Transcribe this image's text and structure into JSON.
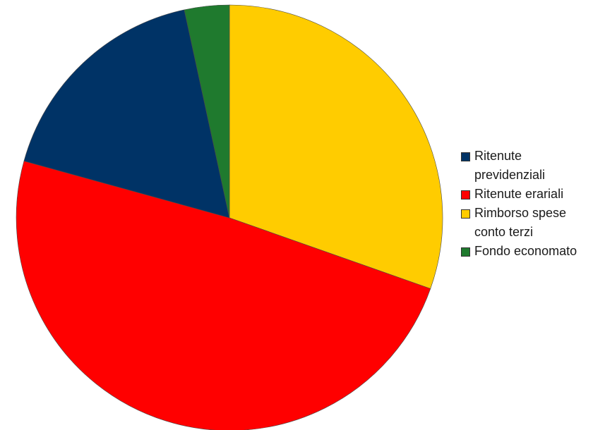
{
  "chart_data": {
    "type": "pie",
    "title": "",
    "start_angle_deg": 0,
    "direction": "clockwise",
    "slices": [
      {
        "label": "Rimborso spese conto terzi",
        "value": 30.4,
        "color": "#FFCC00"
      },
      {
        "label": "Ritenute erariali",
        "value": 48.9,
        "color": "#FF0000"
      },
      {
        "label": "Ritenute previdenziali",
        "value": 17.3,
        "color": "#003366"
      },
      {
        "label": "Fondo economato",
        "value": 3.4,
        "color": "#1F7A2E"
      }
    ],
    "legend": {
      "placement": "right",
      "entries": [
        {
          "label": "Ritenute previdenziali",
          "color": "#003366"
        },
        {
          "label": "Ritenute erariali",
          "color": "#FF0000"
        },
        {
          "label": "Rimborso spese conto terzi",
          "color": "#FFCC00"
        },
        {
          "label": "Fondo economato",
          "color": "#1F7A2E"
        }
      ]
    }
  }
}
